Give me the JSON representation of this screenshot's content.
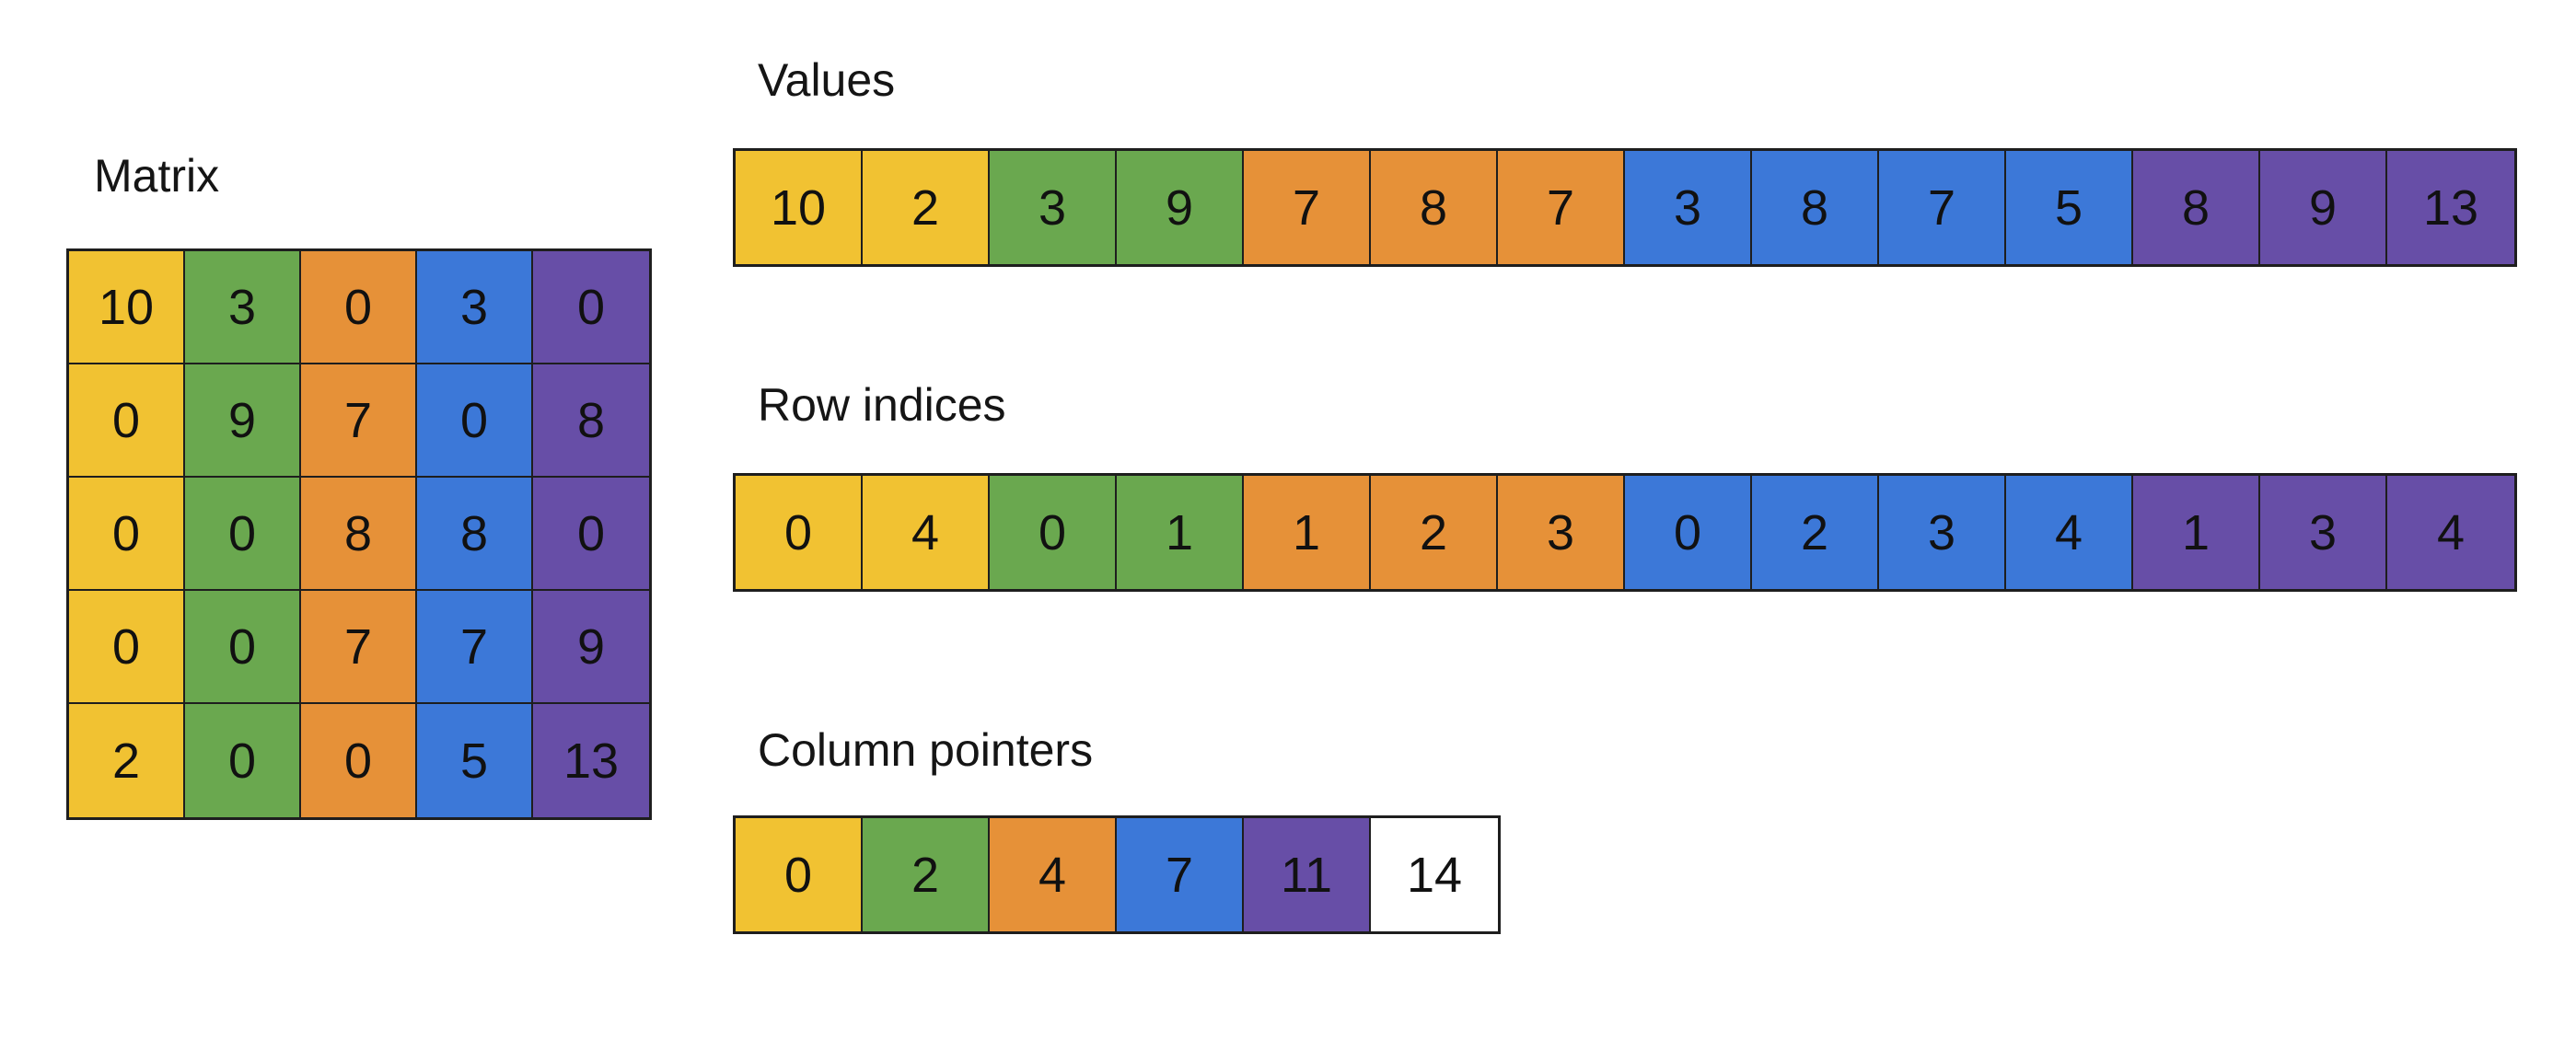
{
  "palette": {
    "yellow": "#F1C232",
    "green": "#6AA84F",
    "orange": "#E69138",
    "blue": "#3C78D8",
    "purple": "#674EA7",
    "white": "#FFFFFF"
  },
  "matrix": {
    "title": "Matrix",
    "column_colors": [
      "yellow",
      "green",
      "orange",
      "blue",
      "purple"
    ],
    "rows": [
      [
        "10",
        "3",
        "0",
        "3",
        "0"
      ],
      [
        "0",
        "9",
        "7",
        "0",
        "8"
      ],
      [
        "0",
        "0",
        "8",
        "8",
        "0"
      ],
      [
        "0",
        "0",
        "7",
        "7",
        "9"
      ],
      [
        "2",
        "0",
        "0",
        "5",
        "13"
      ]
    ]
  },
  "values": {
    "title": "Values",
    "cells": [
      {
        "v": "10",
        "c": "yellow"
      },
      {
        "v": "2",
        "c": "yellow"
      },
      {
        "v": "3",
        "c": "green"
      },
      {
        "v": "9",
        "c": "green"
      },
      {
        "v": "7",
        "c": "orange"
      },
      {
        "v": "8",
        "c": "orange"
      },
      {
        "v": "7",
        "c": "orange"
      },
      {
        "v": "3",
        "c": "blue"
      },
      {
        "v": "8",
        "c": "blue"
      },
      {
        "v": "7",
        "c": "blue"
      },
      {
        "v": "5",
        "c": "blue"
      },
      {
        "v": "8",
        "c": "purple"
      },
      {
        "v": "9",
        "c": "purple"
      },
      {
        "v": "13",
        "c": "purple"
      }
    ]
  },
  "row_indices": {
    "title": "Row indices",
    "cells": [
      {
        "v": "0",
        "c": "yellow"
      },
      {
        "v": "4",
        "c": "yellow"
      },
      {
        "v": "0",
        "c": "green"
      },
      {
        "v": "1",
        "c": "green"
      },
      {
        "v": "1",
        "c": "orange"
      },
      {
        "v": "2",
        "c": "orange"
      },
      {
        "v": "3",
        "c": "orange"
      },
      {
        "v": "0",
        "c": "blue"
      },
      {
        "v": "2",
        "c": "blue"
      },
      {
        "v": "3",
        "c": "blue"
      },
      {
        "v": "4",
        "c": "blue"
      },
      {
        "v": "1",
        "c": "purple"
      },
      {
        "v": "3",
        "c": "purple"
      },
      {
        "v": "4",
        "c": "purple"
      }
    ]
  },
  "column_pointers": {
    "title": "Column pointers",
    "cells": [
      {
        "v": "0",
        "c": "yellow"
      },
      {
        "v": "2",
        "c": "green"
      },
      {
        "v": "4",
        "c": "orange"
      },
      {
        "v": "7",
        "c": "blue"
      },
      {
        "v": "11",
        "c": "purple"
      },
      {
        "v": "14",
        "c": "white"
      }
    ]
  }
}
